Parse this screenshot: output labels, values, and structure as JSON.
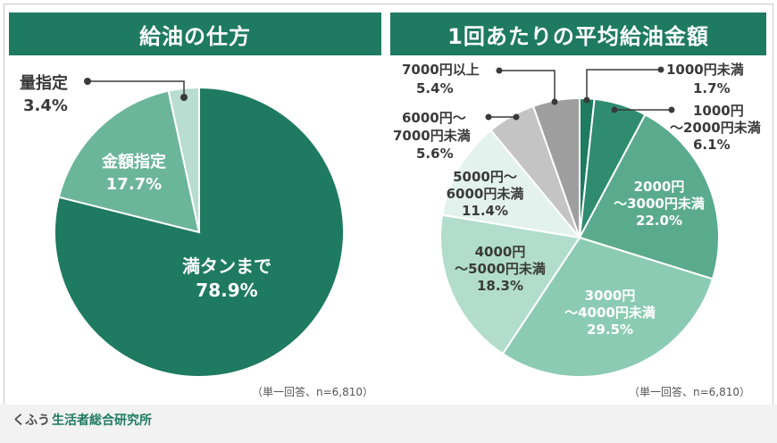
{
  "charts": {
    "left_title": "給油の仕方",
    "right_title": "1回あたりの平均給油金額"
  },
  "chart_data": [
    {
      "type": "pie",
      "title": "給油の仕方",
      "note": "（単一回答、n=6,810）",
      "slices": [
        {
          "label": "満タンまで",
          "value": 78.9,
          "value_label": "78.9%",
          "color": "#1e7a60"
        },
        {
          "label": "金額指定",
          "value": 17.7,
          "value_label": "17.7%",
          "color": "#6bb59b"
        },
        {
          "label": "量指定",
          "value": 3.4,
          "value_label": "3.4%",
          "color": "#b9ddd0"
        }
      ]
    },
    {
      "type": "pie",
      "title": "1回あたりの平均給油金額",
      "note": "（単一回答、n=6,810）",
      "slices": [
        {
          "label": "1000円未満",
          "value": 1.7,
          "value_label": "1.7%",
          "color": "#1e7a60"
        },
        {
          "label": "1000円～2000円未満",
          "value": 6.1,
          "value_label": "6.1%",
          "color": "#2f8c6f"
        },
        {
          "label": "2000円～3000円未満",
          "value": 22.0,
          "value_label": "22.0%",
          "color": "#5aaa8e"
        },
        {
          "label": "3000円～4000円未満",
          "value": 29.5,
          "value_label": "29.5%",
          "color": "#8ccbb3"
        },
        {
          "label": "4000円～5000円未満",
          "value": 18.3,
          "value_label": "18.3%",
          "color": "#b2ddcc"
        },
        {
          "label": "5000円～6000円未満",
          "value": 11.4,
          "value_label": "11.4%",
          "color": "#e3f2ec"
        },
        {
          "label": "6000円～7000円未満",
          "value": 5.6,
          "value_label": "5.6%",
          "color": "#c4c4c4"
        },
        {
          "label": "7000円以上",
          "value": 5.4,
          "value_label": "5.4%",
          "color": "#9e9e9e"
        }
      ]
    }
  ],
  "footer": {
    "brand_kana": "くふう",
    "brand_name": "生活者総合研究所"
  }
}
